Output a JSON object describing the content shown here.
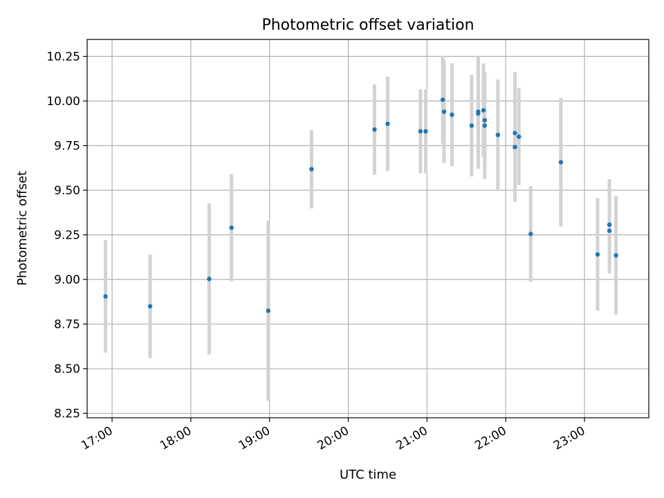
{
  "chart_data": {
    "type": "scatter",
    "title": "Photometric offset variation",
    "xlabel": "UTC time",
    "ylabel": "Photometric offset",
    "x_ticks": [
      "17:00",
      "18:00",
      "19:00",
      "20:00",
      "21:00",
      "22:00",
      "23:00"
    ],
    "y_ticks": [
      "8.25",
      "8.50",
      "8.75",
      "9.00",
      "9.25",
      "9.50",
      "9.75",
      "10.00",
      "10.25"
    ],
    "xlim": [
      "16:41",
      "23:49"
    ],
    "ylim": [
      8.225,
      10.345
    ],
    "grid": true,
    "colors": {
      "point": "#1f77b4",
      "errorbar": "#d3d3d3",
      "grid": "#b0b0b0"
    },
    "series": [
      {
        "points": [
          {
            "t": "16:55",
            "y": 8.905,
            "yerr": 0.315
          },
          {
            "t": "17:29",
            "y": 8.85,
            "yerr": 0.29
          },
          {
            "t": "18:14",
            "y": 9.003,
            "yerr": 0.423
          },
          {
            "t": "18:31",
            "y": 9.29,
            "yerr": 0.3
          },
          {
            "t": "18:59",
            "y": 8.825,
            "yerr": 0.505
          },
          {
            "t": "19:32",
            "y": 9.618,
            "yerr": 0.22
          },
          {
            "t": "20:20",
            "y": 9.84,
            "yerr": 0.253
          },
          {
            "t": "20:30",
            "y": 9.872,
            "yerr": 0.265
          },
          {
            "t": "20:55",
            "y": 9.83,
            "yerr": 0.235
          },
          {
            "t": "20:59",
            "y": 9.83,
            "yerr": 0.235
          },
          {
            "t": "21:12",
            "y": 10.007,
            "yerr": 0.245
          },
          {
            "t": "21:13",
            "y": 9.94,
            "yerr": 0.288
          },
          {
            "t": "21:19",
            "y": 9.923,
            "yerr": 0.288
          },
          {
            "t": "21:34",
            "y": 9.862,
            "yerr": 0.285
          },
          {
            "t": "21:39",
            "y": 9.94,
            "yerr": 0.31
          },
          {
            "t": "21:39",
            "y": 9.93,
            "yerr": 0.31
          },
          {
            "t": "21:43",
            "y": 9.948,
            "yerr": 0.262
          },
          {
            "t": "21:44",
            "y": 9.892,
            "yerr": 0.268
          },
          {
            "t": "21:44",
            "y": 9.862,
            "yerr": 0.3
          },
          {
            "t": "21:54",
            "y": 9.81,
            "yerr": 0.31
          },
          {
            "t": "22:07",
            "y": 9.82,
            "yerr": 0.342
          },
          {
            "t": "22:07",
            "y": 9.742,
            "yerr": 0.308
          },
          {
            "t": "22:10",
            "y": 9.8,
            "yerr": 0.272
          },
          {
            "t": "22:19",
            "y": 9.255,
            "yerr": 0.268
          },
          {
            "t": "22:42",
            "y": 9.657,
            "yerr": 0.36
          },
          {
            "t": "23:10",
            "y": 9.14,
            "yerr": 0.315
          },
          {
            "t": "23:19",
            "y": 9.307,
            "yerr": 0.255
          },
          {
            "t": "23:19",
            "y": 9.273,
            "yerr": 0.24
          },
          {
            "t": "23:24",
            "y": 9.135,
            "yerr": 0.332
          }
        ]
      }
    ]
  }
}
